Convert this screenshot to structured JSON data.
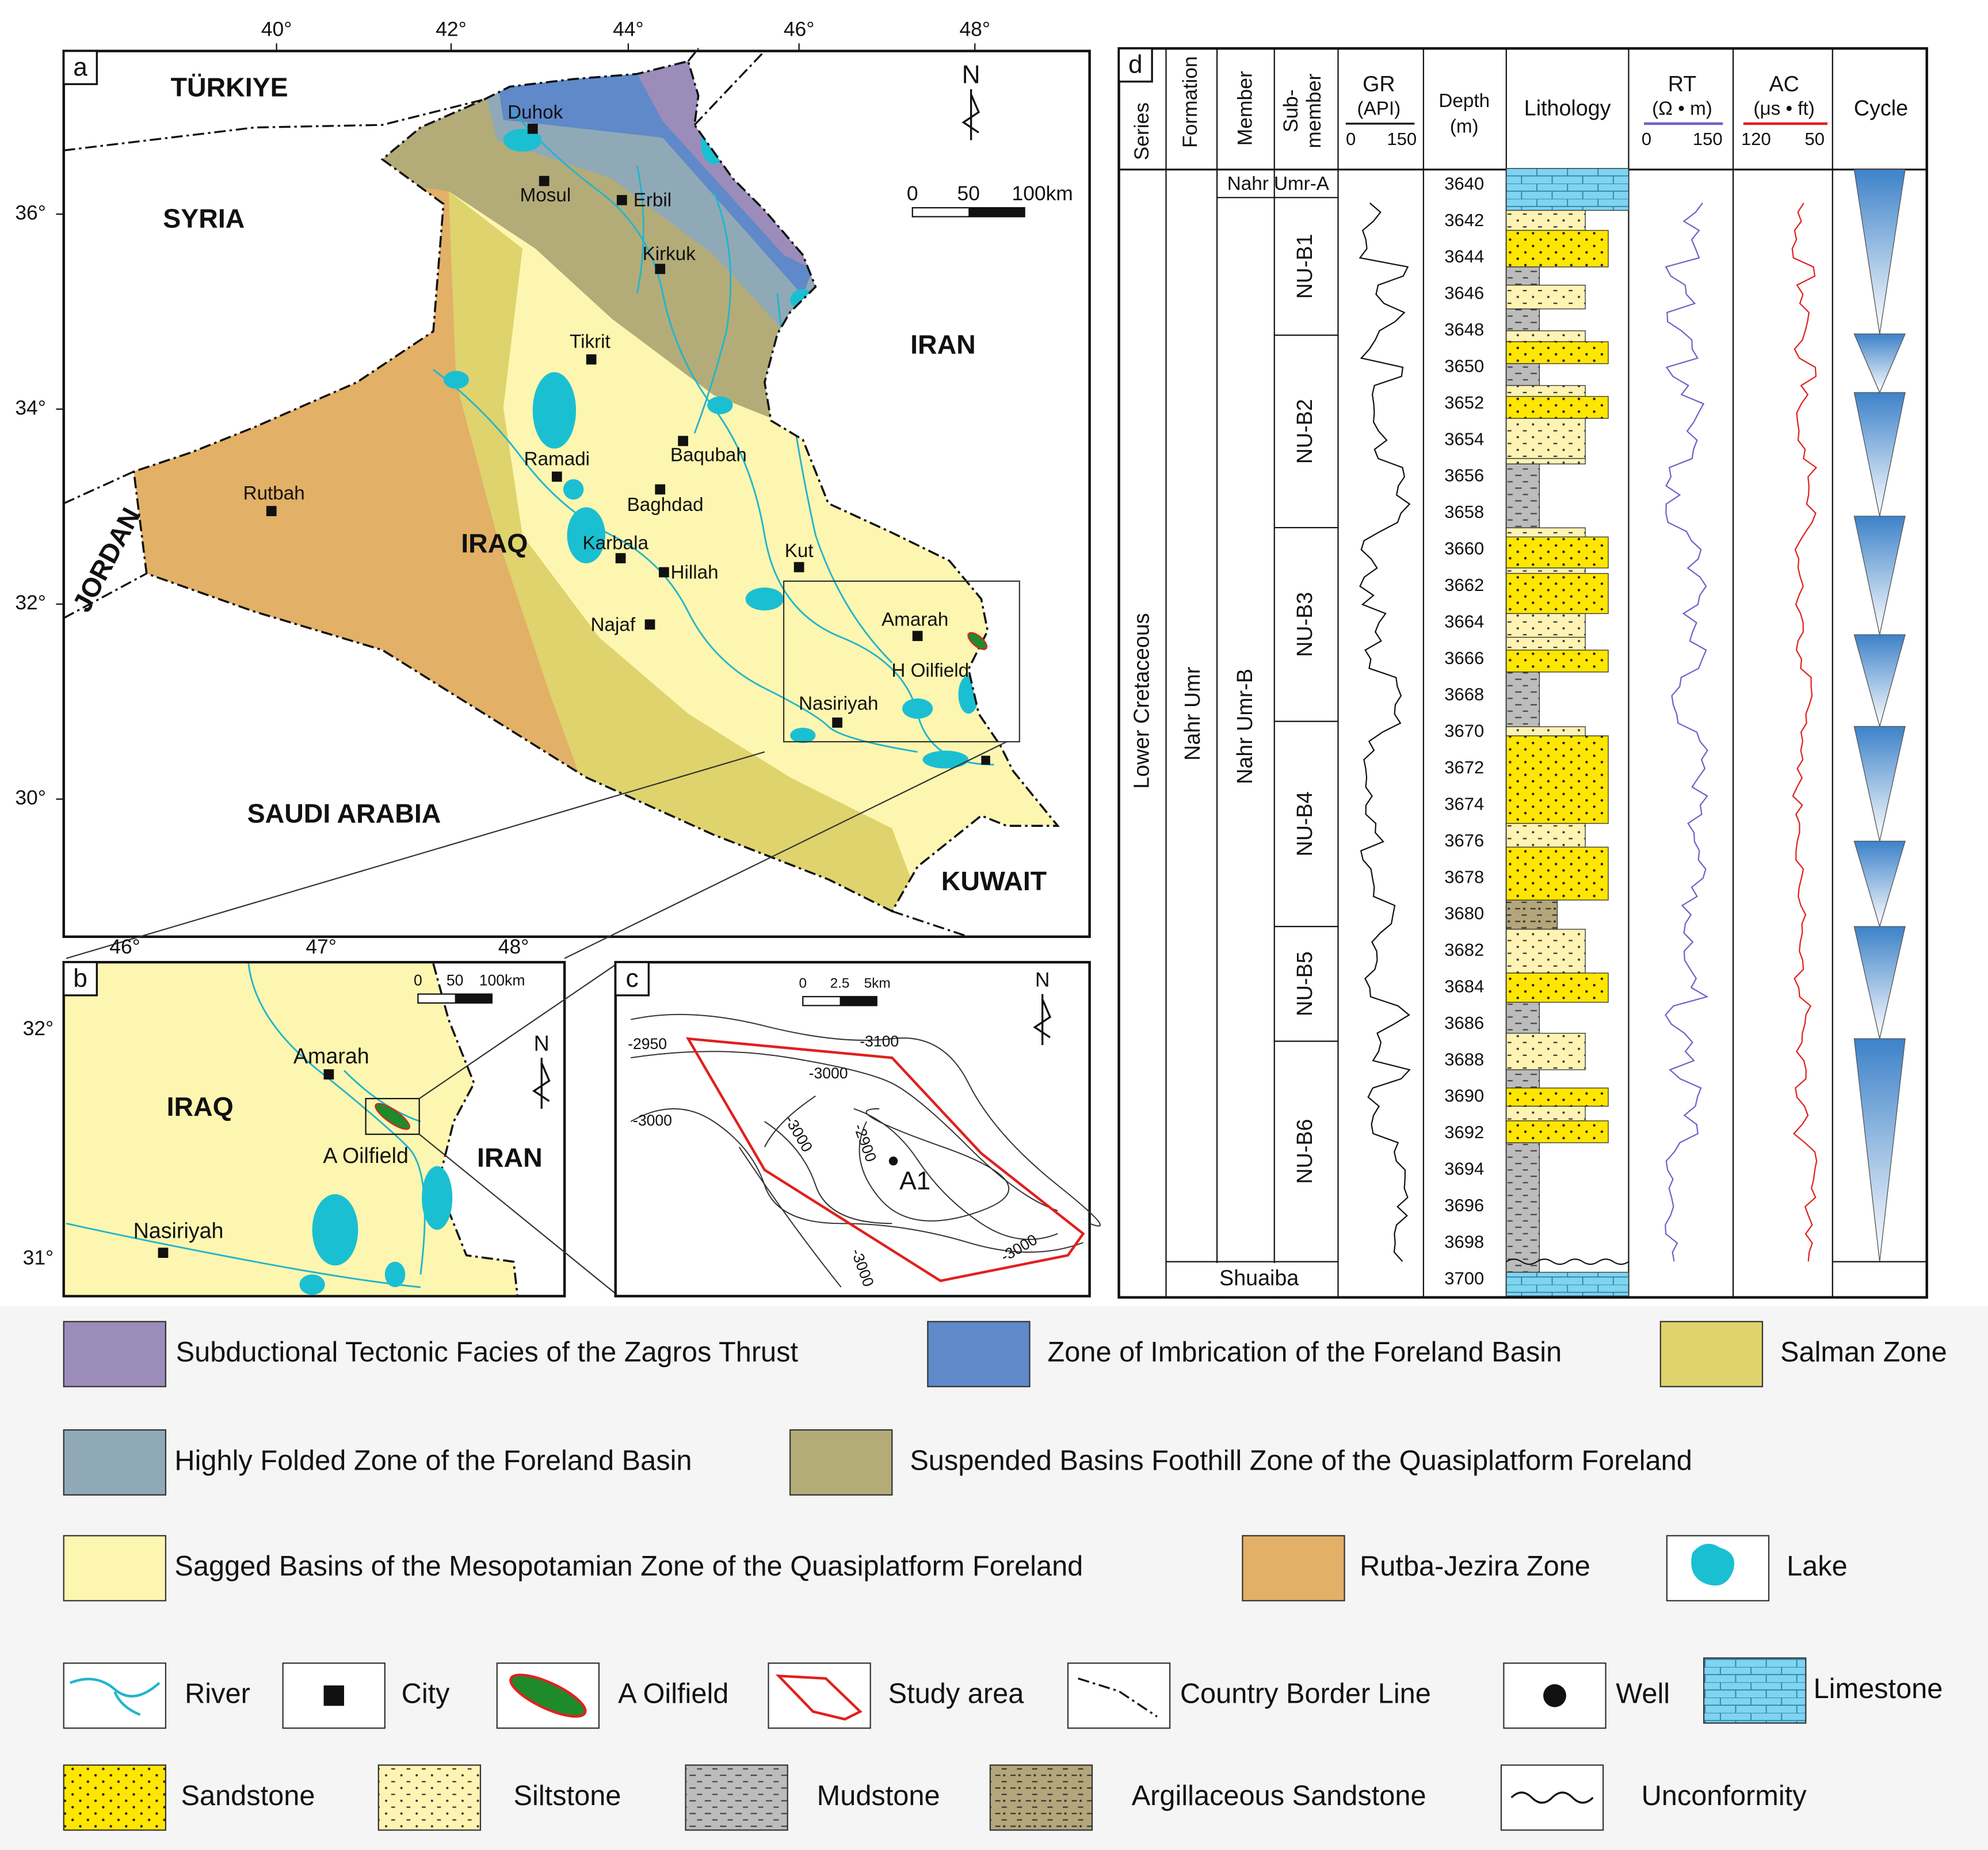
{
  "panel_a": {
    "label": "a",
    "longitudes": [
      "40°",
      "42°",
      "44°",
      "46°",
      "48°"
    ],
    "latitudes": [
      "36°",
      "34°",
      "32°",
      "30°"
    ],
    "countries": [
      "TÜRKIYE",
      "SYRIA",
      "IRAN",
      "JORDAN",
      "IRAQ",
      "SAUDI ARABIA",
      "KUWAIT"
    ],
    "cities": [
      "Duhok",
      "Mosul",
      "Erbil",
      "Kirkuk",
      "Tikrit",
      "Ramadi",
      "Baqubah",
      "Baghdad",
      "Rutbah",
      "Karbala",
      "Hillah",
      "Kut",
      "Najaf",
      "Amarah",
      "Nasiriyah"
    ],
    "oilfield": "H Oilfield",
    "north": "N",
    "scale": [
      "0",
      "50",
      "100km"
    ]
  },
  "panel_b": {
    "label": "b",
    "longitudes": [
      "46°",
      "47°",
      "48°"
    ],
    "latitudes": [
      "32°",
      "31°"
    ],
    "countries": [
      "IRAQ",
      "IRAN"
    ],
    "cities": [
      "Amarah",
      "Nasiriyah"
    ],
    "oilfield": "A Oilfield",
    "north": "N",
    "scale": [
      "0",
      "50",
      "100km"
    ]
  },
  "panel_c": {
    "label": "c",
    "north": "N",
    "scale": [
      "0",
      "2.5",
      "5km"
    ],
    "contours": [
      "-3100",
      "-3000",
      "-2950",
      "-3000",
      "-3000",
      "-2900",
      "-3000",
      "-3000"
    ],
    "well": "A1"
  },
  "panel_d": {
    "label": "d",
    "headers": {
      "series": "Series",
      "formation": "Formation",
      "member": "Member",
      "sub_member": [
        "Sub-",
        "member"
      ],
      "gr": [
        "GR",
        "(API)"
      ],
      "gr_scale": [
        0,
        150
      ],
      "depth": [
        "Depth",
        "(m)"
      ],
      "lithology": "Lithology",
      "rt": [
        "RT",
        "(Ω • m)"
      ],
      "rt_scale": [
        0,
        150
      ],
      "ac": [
        "AC",
        "(μs • ft)"
      ],
      "ac_scale": [
        120,
        50
      ],
      "cycle": "Cycle"
    },
    "series_name": "Lower Cretaceous",
    "formation_name": "Nahr Umr",
    "members": [
      "Nahr Umr-A",
      "Nahr Umr-B"
    ],
    "sub_members": [
      "NU-B1",
      "NU-B2",
      "NU-B3",
      "NU-B4",
      "NU-B5",
      "NU-B6"
    ],
    "underlying": "Shuaiba",
    "depths": [
      3640,
      3642,
      3644,
      3646,
      3648,
      3650,
      3652,
      3654,
      3656,
      3658,
      3660,
      3662,
      3664,
      3666,
      3668,
      3670,
      3672,
      3674,
      3676,
      3678,
      3680,
      3682,
      3684,
      3686,
      3688,
      3690,
      3692,
      3694,
      3696,
      3698,
      3700
    ]
  },
  "legend": [
    "Subductional Tectonic Facies of the Zagros Thrust",
    "Zone of Imbrication of the Foreland Basin",
    "Salman Zone",
    "Highly Folded Zone of the Foreland Basin",
    "Suspended Basins Foothill Zone of the Quasiplatform Foreland",
    "Sagged Basins of the Mesopotamian Zone of the Quasiplatform Foreland",
    "Rutba-Jezira Zone",
    "Lake",
    "River",
    "City",
    "A Oilfield",
    "Study area",
    "Country Border Line",
    "Well",
    "Limestone",
    "Sandstone",
    "Siltstone",
    "Mudstone",
    "Argillaceous Sandstone",
    "Unconformity"
  ]
}
